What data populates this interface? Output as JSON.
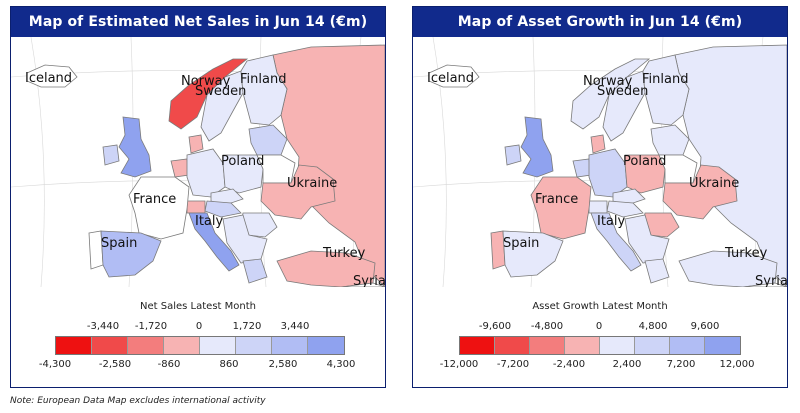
{
  "palette": {
    "neg4": "#ee1111",
    "neg3": "#f04a4a",
    "neg2": "#f37d7d",
    "neg1": "#f7b3b3",
    "pos1": "#e6e9fb",
    "pos2": "#cdd4f7",
    "pos3": "#b1bdf4",
    "pos4": "#8fa2ef",
    "none": "#ffffff",
    "border": "#7a7a7a",
    "title_bg": "#112a8c"
  },
  "panels": [
    {
      "title": "Map of Estimated Net Sales in Jun 14 (€m)",
      "labels": [
        {
          "key": "iceland",
          "text": "Iceland"
        },
        {
          "key": "norway",
          "text": "Norway"
        },
        {
          "key": "finland",
          "text": "Finland"
        },
        {
          "key": "sweden",
          "text": "Sweden"
        },
        {
          "key": "poland",
          "text": "Poland"
        },
        {
          "key": "ukraine",
          "text": "Ukraine"
        },
        {
          "key": "france",
          "text": "France"
        },
        {
          "key": "italy",
          "text": "Italy"
        },
        {
          "key": "spain",
          "text": "Spain"
        },
        {
          "key": "turkey",
          "text": "Turkey"
        },
        {
          "key": "syria",
          "text": "Syria"
        }
      ],
      "fills": {
        "iceland": "none",
        "norway": "neg3",
        "sweden": "pos1",
        "finland": "pos1",
        "russia": "neg1",
        "uk": "pos4",
        "ireland": "pos2",
        "france": "none",
        "spain": "pos3",
        "portugal": "none",
        "germany": "pos1",
        "poland": "pos1",
        "italy": "pos4",
        "ukraine": "neg1",
        "turkey": "neg1",
        "baltics": "pos2",
        "benelux": "neg1",
        "denmark": "neg1",
        "czech": "pos1",
        "austria": "pos2",
        "swiss": "neg1",
        "balkans": "pos1",
        "romania": "pos1",
        "belarus": "none",
        "greece": "pos2",
        "syria": "none"
      },
      "legend": {
        "title": "Net Sales Latest Month",
        "top_ticks": [
          "-3,440",
          "-1,720",
          "0",
          "1,720",
          "3,440"
        ],
        "bottom_ticks": [
          "-4,300",
          "-2,580",
          "-860",
          "860",
          "2,580",
          "4,300"
        ],
        "colors": [
          "neg4",
          "neg3",
          "neg2",
          "neg1",
          "pos1",
          "pos2",
          "pos3",
          "pos4"
        ]
      }
    },
    {
      "title": "Map of Asset Growth in Jun 14 (€m)",
      "labels": [
        {
          "key": "iceland",
          "text": "Iceland"
        },
        {
          "key": "norway",
          "text": "Norway"
        },
        {
          "key": "finland",
          "text": "Finland"
        },
        {
          "key": "sweden",
          "text": "Sweden"
        },
        {
          "key": "poland",
          "text": "Poland"
        },
        {
          "key": "ukraine",
          "text": "Ukraine"
        },
        {
          "key": "france",
          "text": "France"
        },
        {
          "key": "italy",
          "text": "Italy"
        },
        {
          "key": "spain",
          "text": "Spain"
        },
        {
          "key": "turkey",
          "text": "Turkey"
        },
        {
          "key": "syria",
          "text": "Syria"
        }
      ],
      "fills": {
        "iceland": "none",
        "norway": "pos1",
        "sweden": "pos1",
        "finland": "pos1",
        "russia": "pos1",
        "uk": "pos4",
        "ireland": "pos2",
        "france": "neg1",
        "spain": "pos1",
        "portugal": "neg1",
        "germany": "pos2",
        "poland": "neg1",
        "italy": "pos2",
        "ukraine": "neg1",
        "turkey": "pos1",
        "baltics": "pos1",
        "benelux": "pos2",
        "denmark": "neg1",
        "czech": "pos1",
        "austria": "pos1",
        "swiss": "pos1",
        "balkans": "pos1",
        "romania": "neg1",
        "belarus": "none",
        "greece": "pos1",
        "syria": "none"
      },
      "legend": {
        "title": "Asset Growth Latest Month",
        "top_ticks": [
          "-9,600",
          "-4,800",
          "0",
          "4,800",
          "9,600"
        ],
        "bottom_ticks": [
          "-12,000",
          "-7,200",
          "-2,400",
          "2,400",
          "7,200",
          "12,000"
        ],
        "colors": [
          "neg4",
          "neg3",
          "neg2",
          "neg1",
          "pos1",
          "pos2",
          "pos3",
          "pos4"
        ]
      }
    }
  ],
  "footnote": "Note: European Data Map excludes international activity"
}
